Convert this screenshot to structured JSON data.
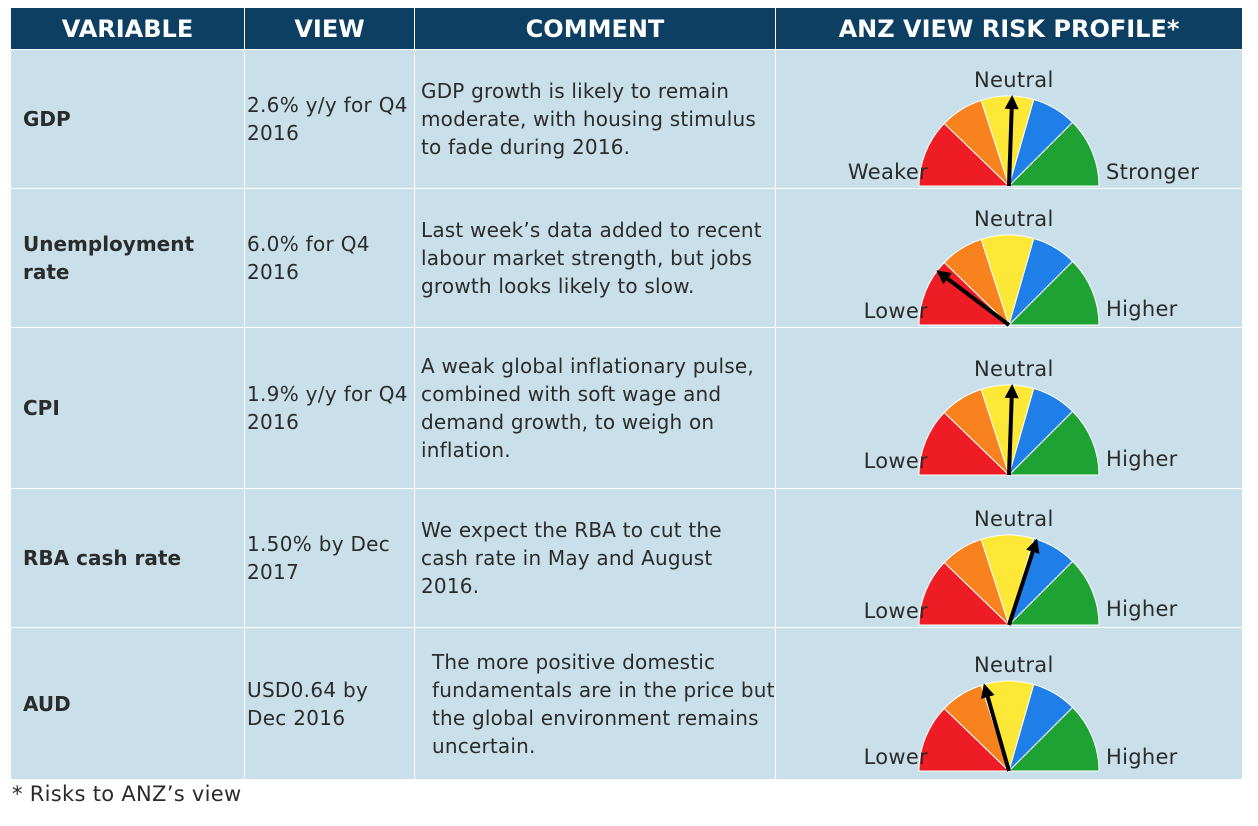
{
  "headers": {
    "variable": "VARIABLE",
    "view": "VIEW",
    "comment": "COMMENT",
    "risk": "ANZ VIEW RISK PROFILE*"
  },
  "rows": [
    {
      "variable": "GDP",
      "view": "2.6% y/y for Q4 2016",
      "comment": "GDP growth is likely to remain moderate, with housing stimulus to fade during 2016.",
      "gauge": {
        "top": "Neutral",
        "left": "Weaker",
        "right": "Stronger",
        "needle_deg": 88
      }
    },
    {
      "variable": "Unemployment rate",
      "view": "6.0% for Q4 2016",
      "comment": "Last week’s data added to recent labour market strength, but jobs growth looks likely to slow.",
      "gauge": {
        "top": "Neutral",
        "left": "Lower",
        "right": "Higher",
        "needle_deg": 143
      }
    },
    {
      "variable": "CPI",
      "view": "1.9% y/y for Q4 2016",
      "comment": "A weak global inflationary pulse, combined with soft wage and demand growth, to weigh on inflation.",
      "gauge": {
        "top": "Neutral",
        "left": "Lower",
        "right": "Higher",
        "needle_deg": 88
      }
    },
    {
      "variable": "RBA cash rate",
      "view": "1.50% by Dec 2017",
      "comment": "We expect the RBA to cut the cash rate in May and August 2016.",
      "gauge": {
        "top": "Neutral",
        "left": "Lower",
        "right": "Higher",
        "needle_deg": 72
      }
    },
    {
      "variable": "AUD",
      "view": "USD0.64 by Dec 2016",
      "comment": "The more positive domestic fundamentals are in the price but the global environment remains uncertain.",
      "gauge": {
        "top": "Neutral",
        "left": "Lower",
        "right": "Higher",
        "needle_deg": 106
      }
    }
  ],
  "gauge_colors": [
    "#ee1c24",
    "#f7821e",
    "#fde737",
    "#1e7fe8",
    "#1ea234"
  ],
  "footnote": "* Risks to ANZ’s view"
}
